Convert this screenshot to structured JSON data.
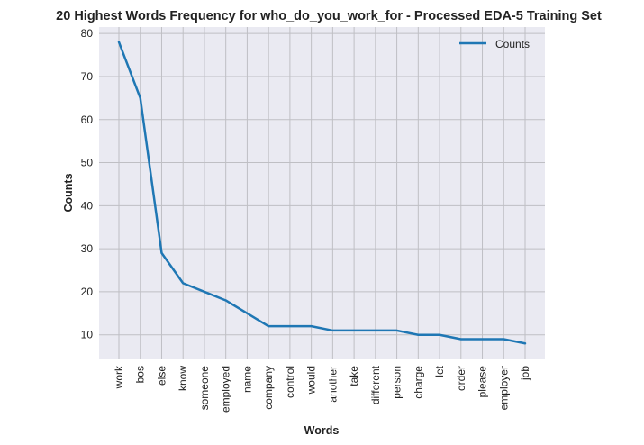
{
  "chart_data": {
    "type": "line",
    "title": "20 Highest Words Frequency for who_do_you_work_for - Processed EDA-5 Training Set",
    "xlabel": "Words",
    "ylabel": "Counts",
    "categories": [
      "work",
      "bos",
      "else",
      "know",
      "someone",
      "employed",
      "name",
      "company",
      "control",
      "would",
      "another",
      "take",
      "different",
      "person",
      "charge",
      "let",
      "order",
      "please",
      "employer",
      "job"
    ],
    "series": [
      {
        "name": "Counts",
        "values": [
          78,
          65,
          29,
          22,
          20,
          18,
          15,
          12,
          12,
          12,
          11,
          11,
          11,
          11,
          10,
          10,
          9,
          9,
          9,
          8
        ],
        "color": "#1f77b4"
      }
    ],
    "ylim": [
      4.5,
      81.5
    ],
    "yticks": [
      10,
      20,
      30,
      40,
      50,
      60,
      70,
      80
    ],
    "grid": true,
    "legend_position": "top-right",
    "background_color": "#eaeaf2",
    "grid_color": "#bfbfc4"
  }
}
